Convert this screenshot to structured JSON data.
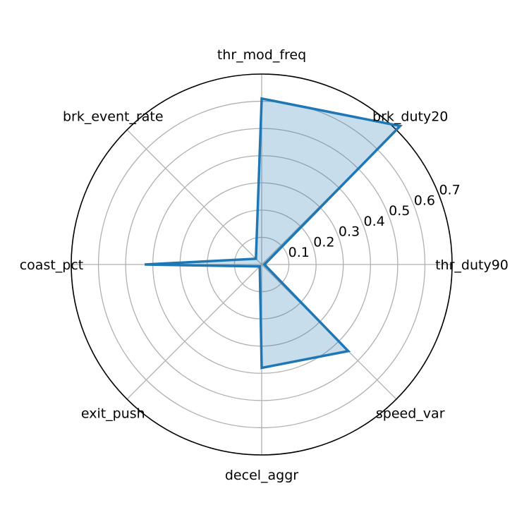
{
  "chart_data": {
    "type": "radar",
    "title": "",
    "categories": [
      "thr_duty90",
      "brk_duty20",
      "thr_mod_freq",
      "brk_event_rate",
      "coast_pct",
      "exit_push",
      "decel_aggr",
      "speed_var"
    ],
    "series": [
      {
        "values": [
          0.01,
          0.72,
          0.61,
          0.03,
          0.43,
          0.01,
          0.38,
          0.45
        ]
      }
    ],
    "radial_ticks": [
      0.1,
      0.2,
      0.3,
      0.4,
      0.5,
      0.6,
      0.7
    ],
    "rlim": [
      0,
      0.7
    ],
    "grid": true,
    "legend": "none",
    "colors": {
      "line": "#1f77b4",
      "fill": "#1f77b4",
      "grid": "#b0b0b0",
      "frame": "#000000"
    }
  }
}
